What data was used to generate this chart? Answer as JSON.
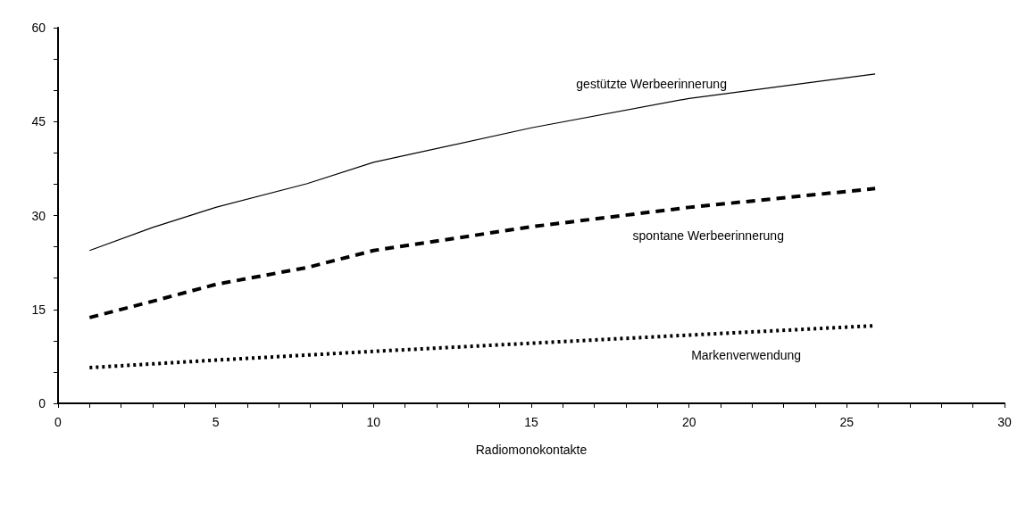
{
  "chart_data": {
    "type": "line",
    "xlabel": "Radiomonokontakte",
    "xlim": [
      0,
      30
    ],
    "xticks": [
      0,
      {
        "value": 1,
        "label": null
      },
      {
        "value": 2,
        "label": null
      },
      {
        "value": 3,
        "label": null
      },
      {
        "value": 4,
        "label": null
      },
      5,
      {
        "value": 6,
        "label": null
      },
      {
        "value": 7,
        "label": null
      },
      {
        "value": 8,
        "label": null
      },
      {
        "value": 9,
        "label": null
      },
      10,
      {
        "value": 11,
        "label": null
      },
      {
        "value": 12,
        "label": null
      },
      {
        "value": 13,
        "label": null
      },
      {
        "value": 14,
        "label": null
      },
      15,
      {
        "value": 16,
        "label": null
      },
      {
        "value": 17,
        "label": null
      },
      {
        "value": 18,
        "label": null
      },
      {
        "value": 19,
        "label": null
      },
      20,
      {
        "value": 21,
        "label": null
      },
      {
        "value": 22,
        "label": null
      },
      {
        "value": 23,
        "label": null
      },
      {
        "value": 24,
        "label": null
      },
      25,
      {
        "value": 26,
        "label": null
      },
      {
        "value": 27,
        "label": null
      },
      {
        "value": 28,
        "label": null
      },
      {
        "value": 29,
        "label": null
      },
      30
    ],
    "ylim": [
      0,
      60
    ],
    "yticks": [
      0,
      {
        "value": 5,
        "label": null
      },
      {
        "value": 10,
        "label": null
      },
      15,
      {
        "value": 20,
        "label": null
      },
      {
        "value": 25,
        "label": null
      },
      30,
      {
        "value": 35,
        "label": null
      },
      {
        "value": 40,
        "label": null
      },
      45,
      {
        "value": 50,
        "label": null
      },
      {
        "value": 55,
        "label": null
      },
      60
    ],
    "marker": "none",
    "series": [
      {
        "name": "gestützte Werbeerinnerung",
        "color": "#000000",
        "line_style": "solid",
        "x": [
          1,
          3,
          5,
          7.9,
          10,
          15,
          20,
          25.9
        ],
        "values": [
          24.4,
          28.1,
          31.3,
          35.1,
          38.5,
          44.0,
          48.7,
          52.6
        ]
      },
      {
        "name": "spontane Werbeerinnerung",
        "color": "#000000",
        "line_style": "dashed",
        "x": [
          1,
          3,
          5,
          7.9,
          10,
          15,
          20,
          25.9
        ],
        "values": [
          13.7,
          16.3,
          19.0,
          21.7,
          24.4,
          28.2,
          31.3,
          34.3
        ]
      },
      {
        "name": "Markenverwendung",
        "color": "#000000",
        "line_style": "dotted",
        "x": [
          1,
          5,
          10,
          15,
          20,
          25.9
        ],
        "values": [
          5.7,
          6.9,
          8.3,
          9.6,
          10.9,
          12.4
        ]
      }
    ]
  }
}
